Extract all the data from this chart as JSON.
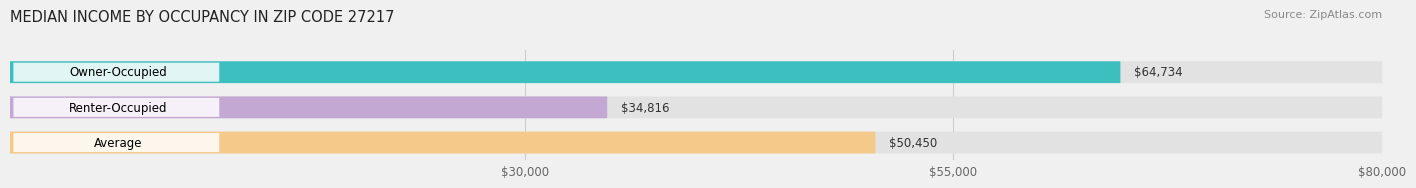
{
  "title": "MEDIAN INCOME BY OCCUPANCY IN ZIP CODE 27217",
  "source_text": "Source: ZipAtlas.com",
  "categories": [
    "Owner-Occupied",
    "Renter-Occupied",
    "Average"
  ],
  "values": [
    64734,
    34816,
    50450
  ],
  "bar_colors": [
    "#3dbfbf",
    "#c4a8d4",
    "#f5c98a"
  ],
  "bar_labels": [
    "$64,734",
    "$34,816",
    "$50,450"
  ],
  "xmin": 0,
  "xmax": 80000,
  "xticks": [
    30000,
    55000,
    80000
  ],
  "xtick_labels": [
    "$30,000",
    "$55,000",
    "$80,000"
  ],
  "background_color": "#f0f0f0",
  "bar_bg_color": "#e2e2e2",
  "title_fontsize": 10.5,
  "label_fontsize": 8.5,
  "tick_fontsize": 8.5,
  "source_fontsize": 8
}
